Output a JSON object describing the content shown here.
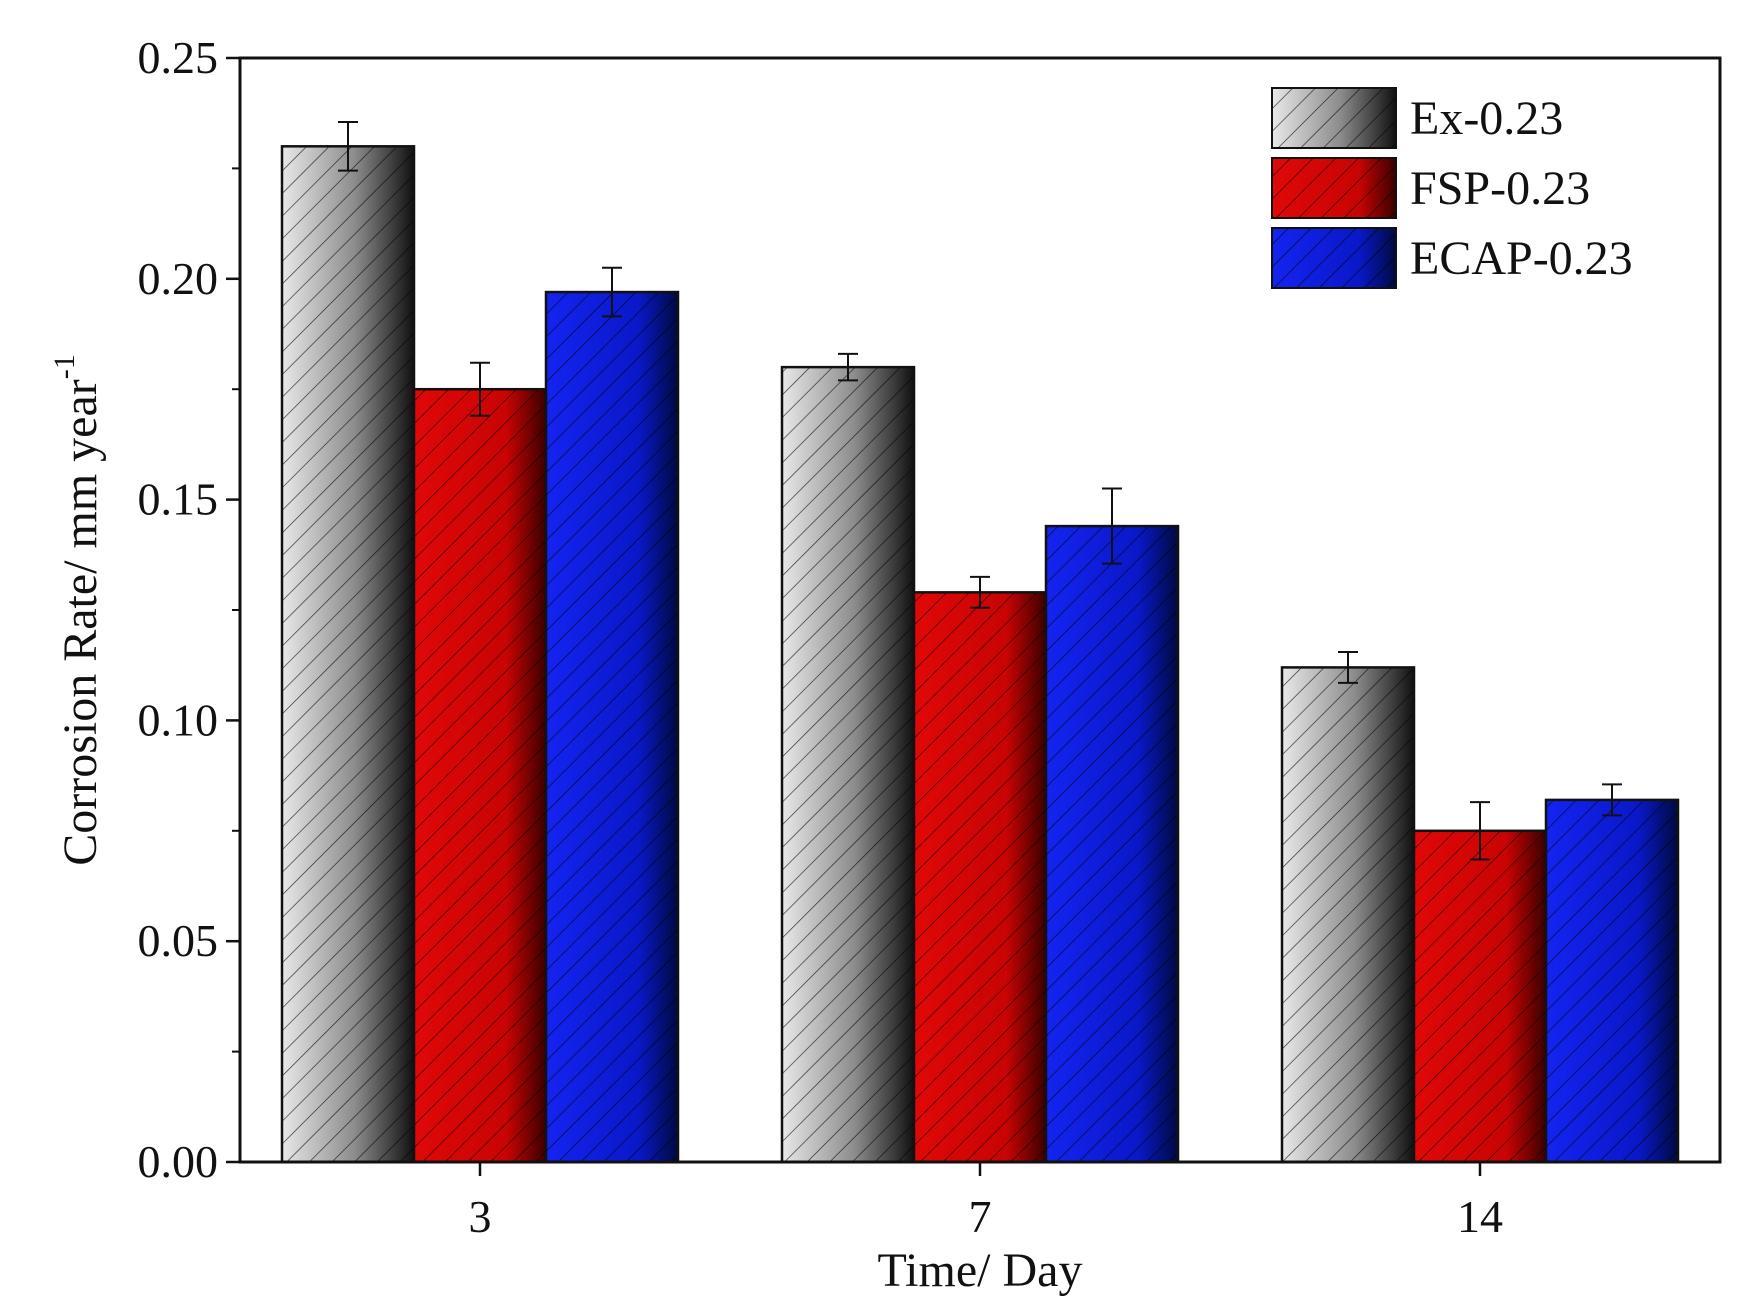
{
  "chart_data": {
    "type": "bar",
    "title": "",
    "xlabel": "Time/ Day",
    "ylabel": "Corrosion Rate/ mm year",
    "ylabel_superscript": "-1",
    "categories": [
      "3",
      "7",
      "14"
    ],
    "ylim": [
      0,
      0.25
    ],
    "yticks": [
      0.0,
      0.05,
      0.1,
      0.15,
      0.2,
      0.25
    ],
    "ytick_labels": [
      "0.00",
      "0.05",
      "0.10",
      "0.15",
      "0.20",
      "0.25"
    ],
    "grid": false,
    "legend_position": "top-right",
    "series": [
      {
        "name": "Ex-0.23",
        "color": "#8a8a8a",
        "values": [
          0.23,
          0.18,
          0.112
        ],
        "errors": [
          0.0055,
          0.003,
          0.0035
        ]
      },
      {
        "name": "FSP-0.23",
        "color": "#e01010",
        "values": [
          0.175,
          0.129,
          0.075
        ],
        "errors": [
          0.006,
          0.0035,
          0.0065
        ]
      },
      {
        "name": "ECAP-0.23",
        "color": "#1a2ee0",
        "values": [
          0.197,
          0.144,
          0.082
        ],
        "errors": [
          0.0055,
          0.0085,
          0.0035
        ]
      }
    ]
  }
}
